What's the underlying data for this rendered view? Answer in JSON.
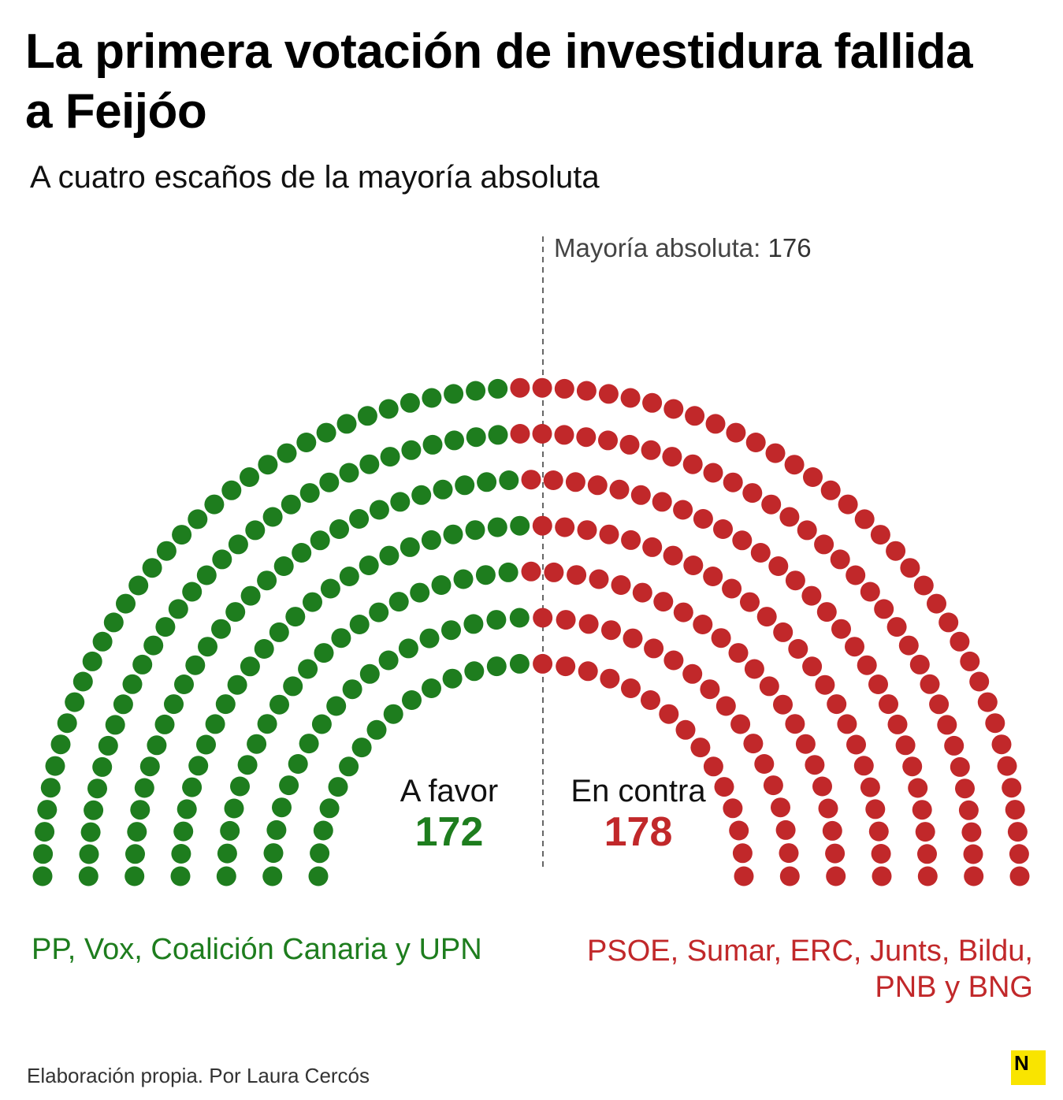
{
  "chart_data": {
    "type": "parliament",
    "title": "La primera votación de investidura fallida a Feijóo",
    "subtitle": "A cuatro escaños de la mayoría absoluta",
    "total_seats": 350,
    "rows": 7,
    "majority": {
      "label": "Mayoría absoluta:",
      "value": "176",
      "seats": 176
    },
    "series": [
      {
        "name": "A favor",
        "label": "A favor",
        "value": "172",
        "seats": 172,
        "color": "#1e7d1e",
        "parties": "PP, Vox, Coalición Canaria y UPN"
      },
      {
        "name": "En contra",
        "label": "En contra",
        "value": "178",
        "seats": 178,
        "color": "#c1282a",
        "parties": "PSOE, Sumar, ERC, Junts, Bildu, PNB y BNG"
      }
    ]
  },
  "source": "Elaboración propia. Por Laura Cercós",
  "logo_text": "N",
  "colors": {
    "favor": "#1e7d1e",
    "contra": "#c1282a",
    "divider": "#666666",
    "logo": "#f9e400"
  }
}
